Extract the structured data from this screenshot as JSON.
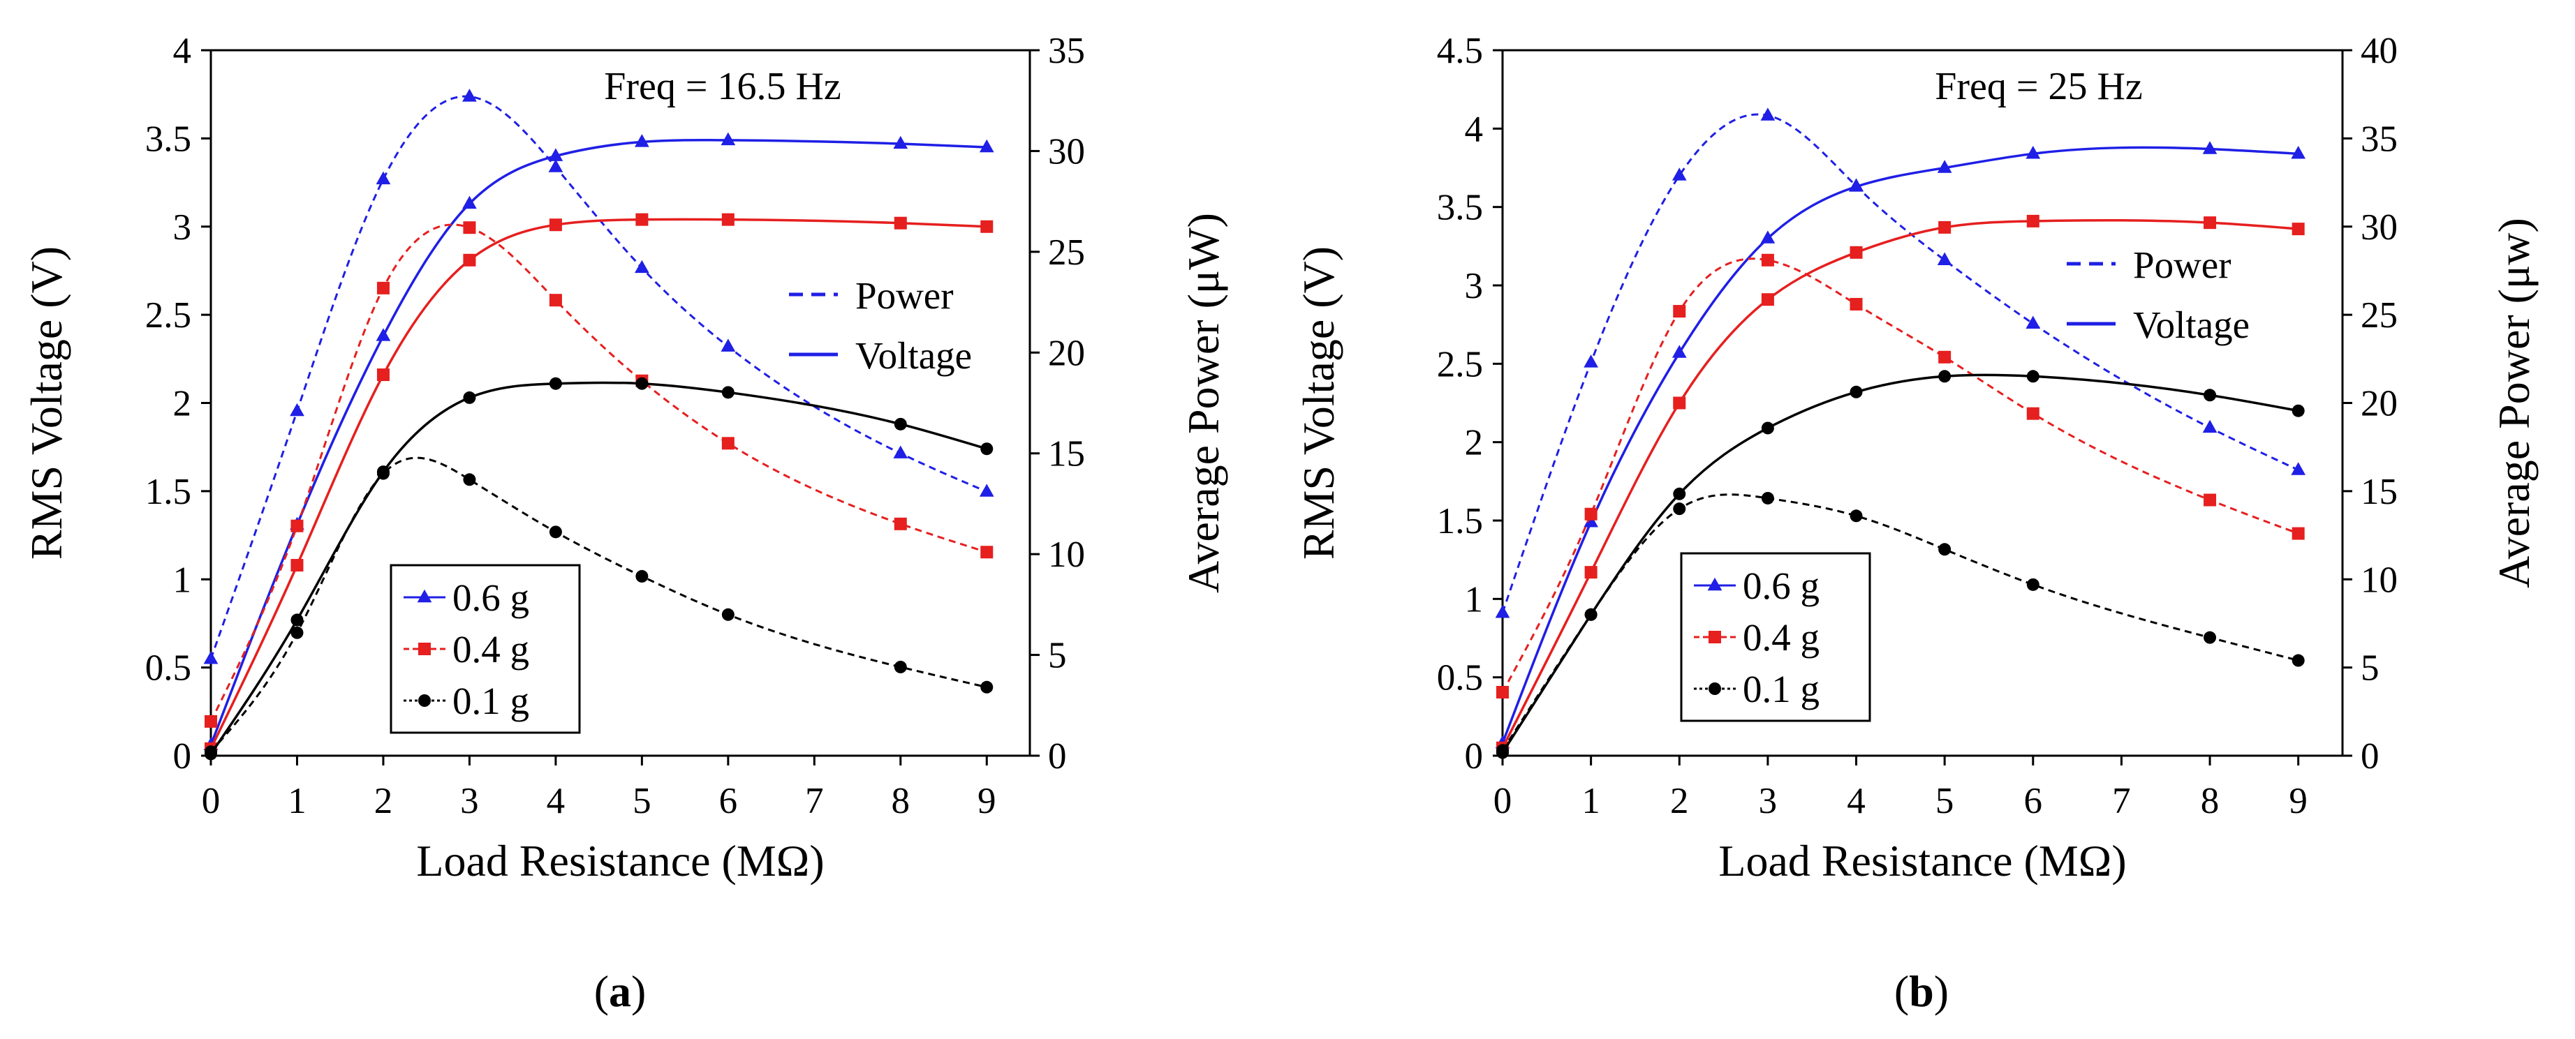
{
  "chart_data": [
    {
      "type": "line",
      "panel_label": "a",
      "annotation": "Freq = 16.5 Hz",
      "xlabel": "Load Resistance (MΩ)",
      "ylabel": "RMS Voltage (V)",
      "y2label": "Average Power (μW)",
      "xlim": [
        0,
        9.5
      ],
      "ylim": [
        0,
        4
      ],
      "y2lim": [
        0,
        35
      ],
      "xticks": [
        0,
        1,
        2,
        3,
        4,
        5,
        6,
        7,
        8,
        9
      ],
      "yticks": [
        "0",
        "0.5",
        "1",
        "1.5",
        "2",
        "2.5",
        "3",
        "3.5",
        "4"
      ],
      "y2ticks": [
        "0",
        "5",
        "10",
        "15",
        "20",
        "25",
        "30",
        "35"
      ],
      "x": [
        0,
        1,
        2,
        3,
        4,
        5,
        6,
        8,
        9
      ],
      "line_style_legend": [
        {
          "label": "Power",
          "style": "dashed"
        },
        {
          "label": "Voltage",
          "style": "solid"
        }
      ],
      "series": [
        {
          "name": "0.6 g",
          "color": "#1f1fe6",
          "marker": "triangle",
          "voltage": [
            0.06,
            1.31,
            2.38,
            3.13,
            3.4,
            3.48,
            3.49,
            3.47,
            3.45
          ],
          "power": [
            4.8,
            17.1,
            28.6,
            32.7,
            29.2,
            24.2,
            20.3,
            15.0,
            13.1
          ]
        },
        {
          "name": "0.4 g",
          "color": "#e61f1f",
          "marker": "square",
          "voltage": [
            0.04,
            1.08,
            2.16,
            2.81,
            3.01,
            3.04,
            3.04,
            3.02,
            3.0
          ],
          "power": [
            1.7,
            11.4,
            23.2,
            26.2,
            22.6,
            18.6,
            15.5,
            11.5,
            10.1
          ]
        },
        {
          "name": "0.1 g",
          "color": "#000000",
          "marker": "circle",
          "voltage": [
            0.01,
            0.77,
            1.61,
            2.03,
            2.11,
            2.11,
            2.06,
            1.88,
            1.74
          ],
          "power": [
            0.2,
            6.1,
            14.0,
            13.7,
            11.1,
            8.9,
            7.0,
            4.4,
            3.4
          ]
        }
      ]
    },
    {
      "type": "line",
      "panel_label": "b",
      "annotation": "Freq = 25 Hz",
      "xlabel": "Load Resistance (MΩ)",
      "ylabel": "RMS Voltage (V)",
      "y2label": "Average Power (μw)",
      "xlim": [
        0,
        9.5
      ],
      "ylim": [
        0,
        4.5
      ],
      "y2lim": [
        0,
        40
      ],
      "xticks": [
        0,
        1,
        2,
        3,
        4,
        5,
        6,
        7,
        8,
        9
      ],
      "yticks": [
        "0",
        "0.5",
        "1",
        "1.5",
        "2",
        "2.5",
        "3",
        "3.5",
        "4",
        "4.5"
      ],
      "y2ticks": [
        "0",
        "5",
        "10",
        "15",
        "20",
        "25",
        "30",
        "35",
        "40"
      ],
      "x": [
        0,
        1,
        2,
        3,
        4,
        5,
        6,
        8,
        9
      ],
      "line_style_legend": [
        {
          "label": "Power",
          "style": "dashed"
        },
        {
          "label": "Voltage",
          "style": "solid"
        }
      ],
      "series": [
        {
          "name": "0.6 g",
          "color": "#1f1fe6",
          "marker": "triangle",
          "voltage": [
            0.08,
            1.49,
            2.57,
            3.3,
            3.63,
            3.75,
            3.84,
            3.87,
            3.84
          ],
          "power": [
            8.1,
            22.3,
            32.9,
            36.3,
            32.3,
            28.1,
            24.5,
            18.6,
            16.2
          ]
        },
        {
          "name": "0.4 g",
          "color": "#e61f1f",
          "marker": "square",
          "voltage": [
            0.05,
            1.17,
            2.25,
            2.91,
            3.21,
            3.37,
            3.41,
            3.4,
            3.36
          ],
          "power": [
            3.6,
            13.7,
            25.2,
            28.1,
            25.6,
            22.6,
            19.4,
            14.5,
            12.6
          ]
        },
        {
          "name": "0.1 g",
          "color": "#000000",
          "marker": "circle",
          "voltage": [
            0.02,
            0.9,
            1.67,
            2.09,
            2.32,
            2.42,
            2.42,
            2.3,
            2.2
          ],
          "power": [
            0.3,
            8.0,
            14.0,
            14.6,
            13.6,
            11.7,
            9.7,
            6.7,
            5.4
          ]
        }
      ]
    }
  ]
}
